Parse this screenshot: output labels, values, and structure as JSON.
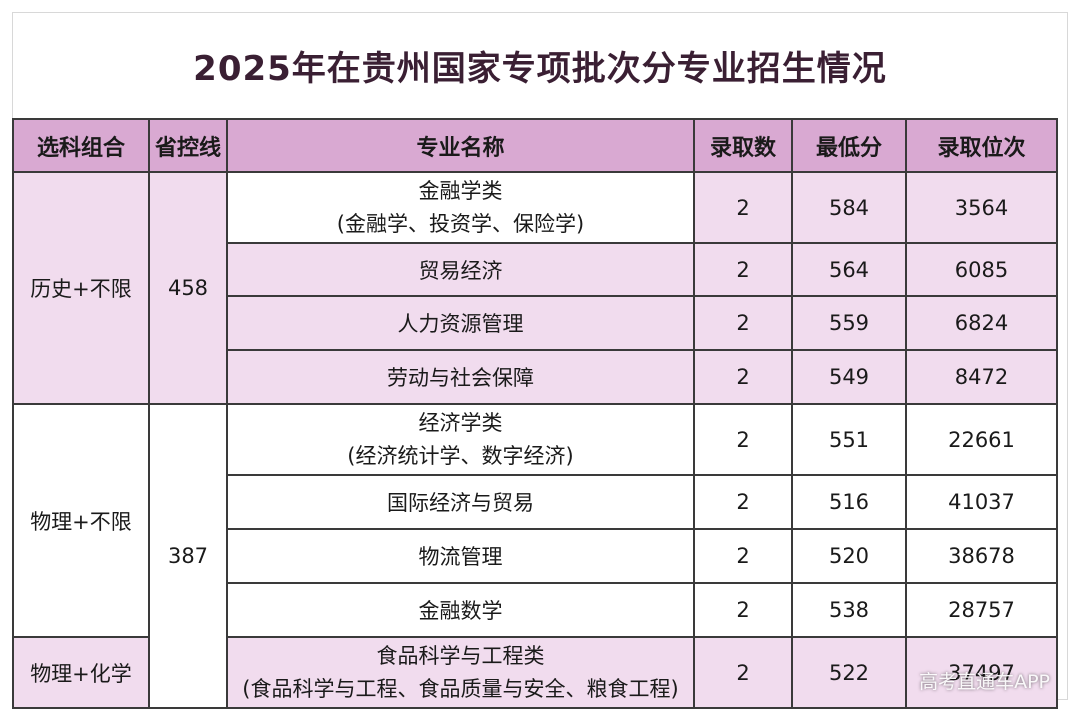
{
  "title": "2025年在贵州国家专项批次分专业招生情况",
  "headers": [
    "选科组合",
    "省控线",
    "专业名称",
    "录取数",
    "最低分",
    "录取位次"
  ],
  "groups": [
    {
      "name": "历史+不限",
      "line": "458"
    },
    {
      "name": "物理+不限",
      "line": "387"
    },
    {
      "name": "物理+化学"
    }
  ],
  "rows": [
    {
      "major": "金融学类",
      "sub": "(金融学、投资学、保险学)",
      "count": "2",
      "min": "584",
      "rank": "3564"
    },
    {
      "major": "贸易经济",
      "count": "2",
      "min": "564",
      "rank": "6085"
    },
    {
      "major": "人力资源管理",
      "count": "2",
      "min": "559",
      "rank": "6824"
    },
    {
      "major": "劳动与社会保障",
      "count": "2",
      "min": "549",
      "rank": "8472"
    },
    {
      "major": "经济学类",
      "sub": "(经济统计学、数字经济)",
      "count": "2",
      "min": "551",
      "rank": "22661"
    },
    {
      "major": "国际经济与贸易",
      "count": "2",
      "min": "516",
      "rank": "41037"
    },
    {
      "major": "物流管理",
      "count": "2",
      "min": "520",
      "rank": "38678"
    },
    {
      "major": "金融数学",
      "count": "2",
      "min": "538",
      "rank": "28757"
    },
    {
      "major": "食品科学与工程类",
      "sub": "(食品科学与工程、食品质量与安全、粮食工程)",
      "count": "2",
      "min": "522",
      "rank": "37497"
    }
  ],
  "watermark": "高考直通车APP"
}
